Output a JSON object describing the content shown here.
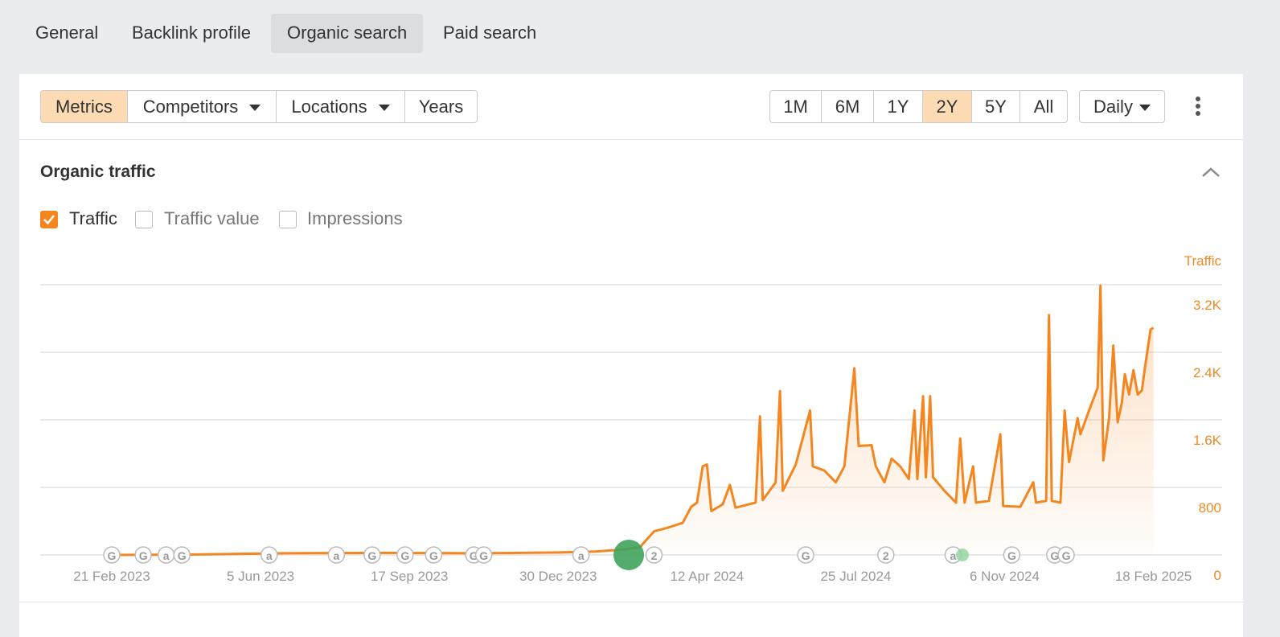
{
  "tabs": [
    "General",
    "Backlink profile",
    "Organic search",
    "Paid search"
  ],
  "toolbar": {
    "filters": [
      "Metrics",
      "Competitors",
      "Locations",
      "Years"
    ],
    "ranges": [
      "1M",
      "6M",
      "1Y",
      "2Y",
      "5Y",
      "All"
    ],
    "interval": "Daily"
  },
  "section": {
    "title": "Organic traffic",
    "checkboxes": [
      "Traffic",
      "Traffic value",
      "Impressions"
    ]
  },
  "chart_data": {
    "type": "line",
    "y_axis_label": "Traffic",
    "color": "#f5861f",
    "grid": true,
    "xlim": [
      "2023-01-02",
      "2025-04-07"
    ],
    "xticks": [
      {
        "value": "2023-02-21",
        "label": "21 Feb 2023"
      },
      {
        "value": "2023-06-05",
        "label": "5 Jun 2023"
      },
      {
        "value": "2023-09-17",
        "label": "17 Sep 2023"
      },
      {
        "value": "2023-12-30",
        "label": "30 Dec 2023"
      },
      {
        "value": "2024-04-12",
        "label": "12 Apr 2024"
      },
      {
        "value": "2024-07-25",
        "label": "25 Jul 2024"
      },
      {
        "value": "2024-11-06",
        "label": "6 Nov 2024"
      },
      {
        "value": "2025-02-18",
        "label": "18 Feb 2025"
      }
    ],
    "ylim": [
      0,
      3200
    ],
    "yticks": [
      0,
      800,
      {
        "value": 1600,
        "label": "1.6K"
      },
      {
        "value": 2400,
        "label": "2.4K"
      },
      {
        "value": 3200,
        "label": "3.2K"
      }
    ],
    "series": [
      {
        "name": "Traffic",
        "color": "#f5861f",
        "x": [
          "2023-02-21",
          "2023-04-15",
          "2023-06-22",
          "2023-09-01",
          "2023-11-01",
          "2024-01-01",
          "2024-01-25",
          "2024-02-10",
          "2024-02-25",
          "2024-03-06",
          "2024-03-15",
          "2024-03-26",
          "2024-04-01",
          "2024-04-05",
          "2024-04-09",
          "2024-04-12",
          "2024-04-15",
          "2024-04-23",
          "2024-04-28",
          "2024-05-02",
          "2024-05-16",
          "2024-05-19",
          "2024-05-21",
          "2024-05-30",
          "2024-06-02",
          "2024-06-04",
          "2024-06-13",
          "2024-06-23",
          "2024-06-25",
          "2024-07-03",
          "2024-07-11",
          "2024-07-17",
          "2024-07-24",
          "2024-07-27",
          "2024-08-05",
          "2024-08-08",
          "2024-08-14",
          "2024-08-19",
          "2024-08-25",
          "2024-08-31",
          "2024-09-04",
          "2024-09-06",
          "2024-09-10",
          "2024-09-12",
          "2024-09-15",
          "2024-09-17",
          "2024-09-25",
          "2024-10-03",
          "2024-10-06",
          "2024-10-09",
          "2024-10-15",
          "2024-10-17",
          "2024-10-26",
          "2024-11-03",
          "2024-11-05",
          "2024-11-17",
          "2024-11-26",
          "2024-11-28",
          "2024-12-05",
          "2024-12-07",
          "2024-12-09",
          "2024-12-15",
          "2024-12-18",
          "2024-12-21",
          "2024-12-27",
          "2024-12-29",
          "2025-01-04",
          "2025-01-10",
          "2025-01-12",
          "2025-01-14",
          "2025-01-18",
          "2025-01-21",
          "2025-01-24",
          "2025-01-27",
          "2025-01-29",
          "2025-02-01",
          "2025-02-04",
          "2025-02-07",
          "2025-02-10",
          "2025-02-12",
          "2025-02-16",
          "2025-02-18"
        ],
        "values": [
          0,
          5,
          20,
          25,
          20,
          30,
          40,
          60,
          90,
          280,
          320,
          380,
          570,
          620,
          1050,
          1070,
          520,
          600,
          830,
          560,
          620,
          1640,
          650,
          860,
          1940,
          760,
          1070,
          1710,
          1050,
          1000,
          860,
          1050,
          2210,
          1290,
          1300,
          1050,
          860,
          1140,
          1050,
          900,
          1710,
          900,
          1880,
          920,
          1880,
          920,
          760,
          620,
          1380,
          620,
          1050,
          620,
          640,
          1430,
          580,
          570,
          860,
          620,
          640,
          2840,
          640,
          620,
          1710,
          1100,
          1620,
          1430,
          1710,
          1980,
          3190,
          1120,
          1620,
          2480,
          1570,
          1810,
          2140,
          1900,
          2190,
          1900,
          1950,
          2210,
          2670,
          2690
        ]
      }
    ],
    "annotations": [
      {
        "x": "2023-02-21",
        "label": "G"
      },
      {
        "x": "2023-03-15",
        "label": "G"
      },
      {
        "x": "2023-03-31",
        "label": "a"
      },
      {
        "x": "2023-04-11",
        "label": "G"
      },
      {
        "x": "2023-06-11",
        "label": "a"
      },
      {
        "x": "2023-07-28",
        "label": "a"
      },
      {
        "x": "2023-08-22",
        "label": "G"
      },
      {
        "x": "2023-09-14",
        "label": "G"
      },
      {
        "x": "2023-10-04",
        "label": "G"
      },
      {
        "x": "2023-11-01",
        "label": "G"
      },
      {
        "x": "2023-11-08",
        "label": "G"
      },
      {
        "x": "2024-01-15",
        "label": "a"
      },
      {
        "x": "2024-03-06",
        "label": "2"
      },
      {
        "x": "2024-06-20",
        "label": "G"
      },
      {
        "x": "2024-08-15",
        "label": "2"
      },
      {
        "x": "2024-10-01",
        "label": "a"
      },
      {
        "x": "2024-11-11",
        "label": "G"
      },
      {
        "x": "2024-12-11",
        "label": "G"
      },
      {
        "x": "2024-12-19",
        "label": "G"
      }
    ]
  }
}
